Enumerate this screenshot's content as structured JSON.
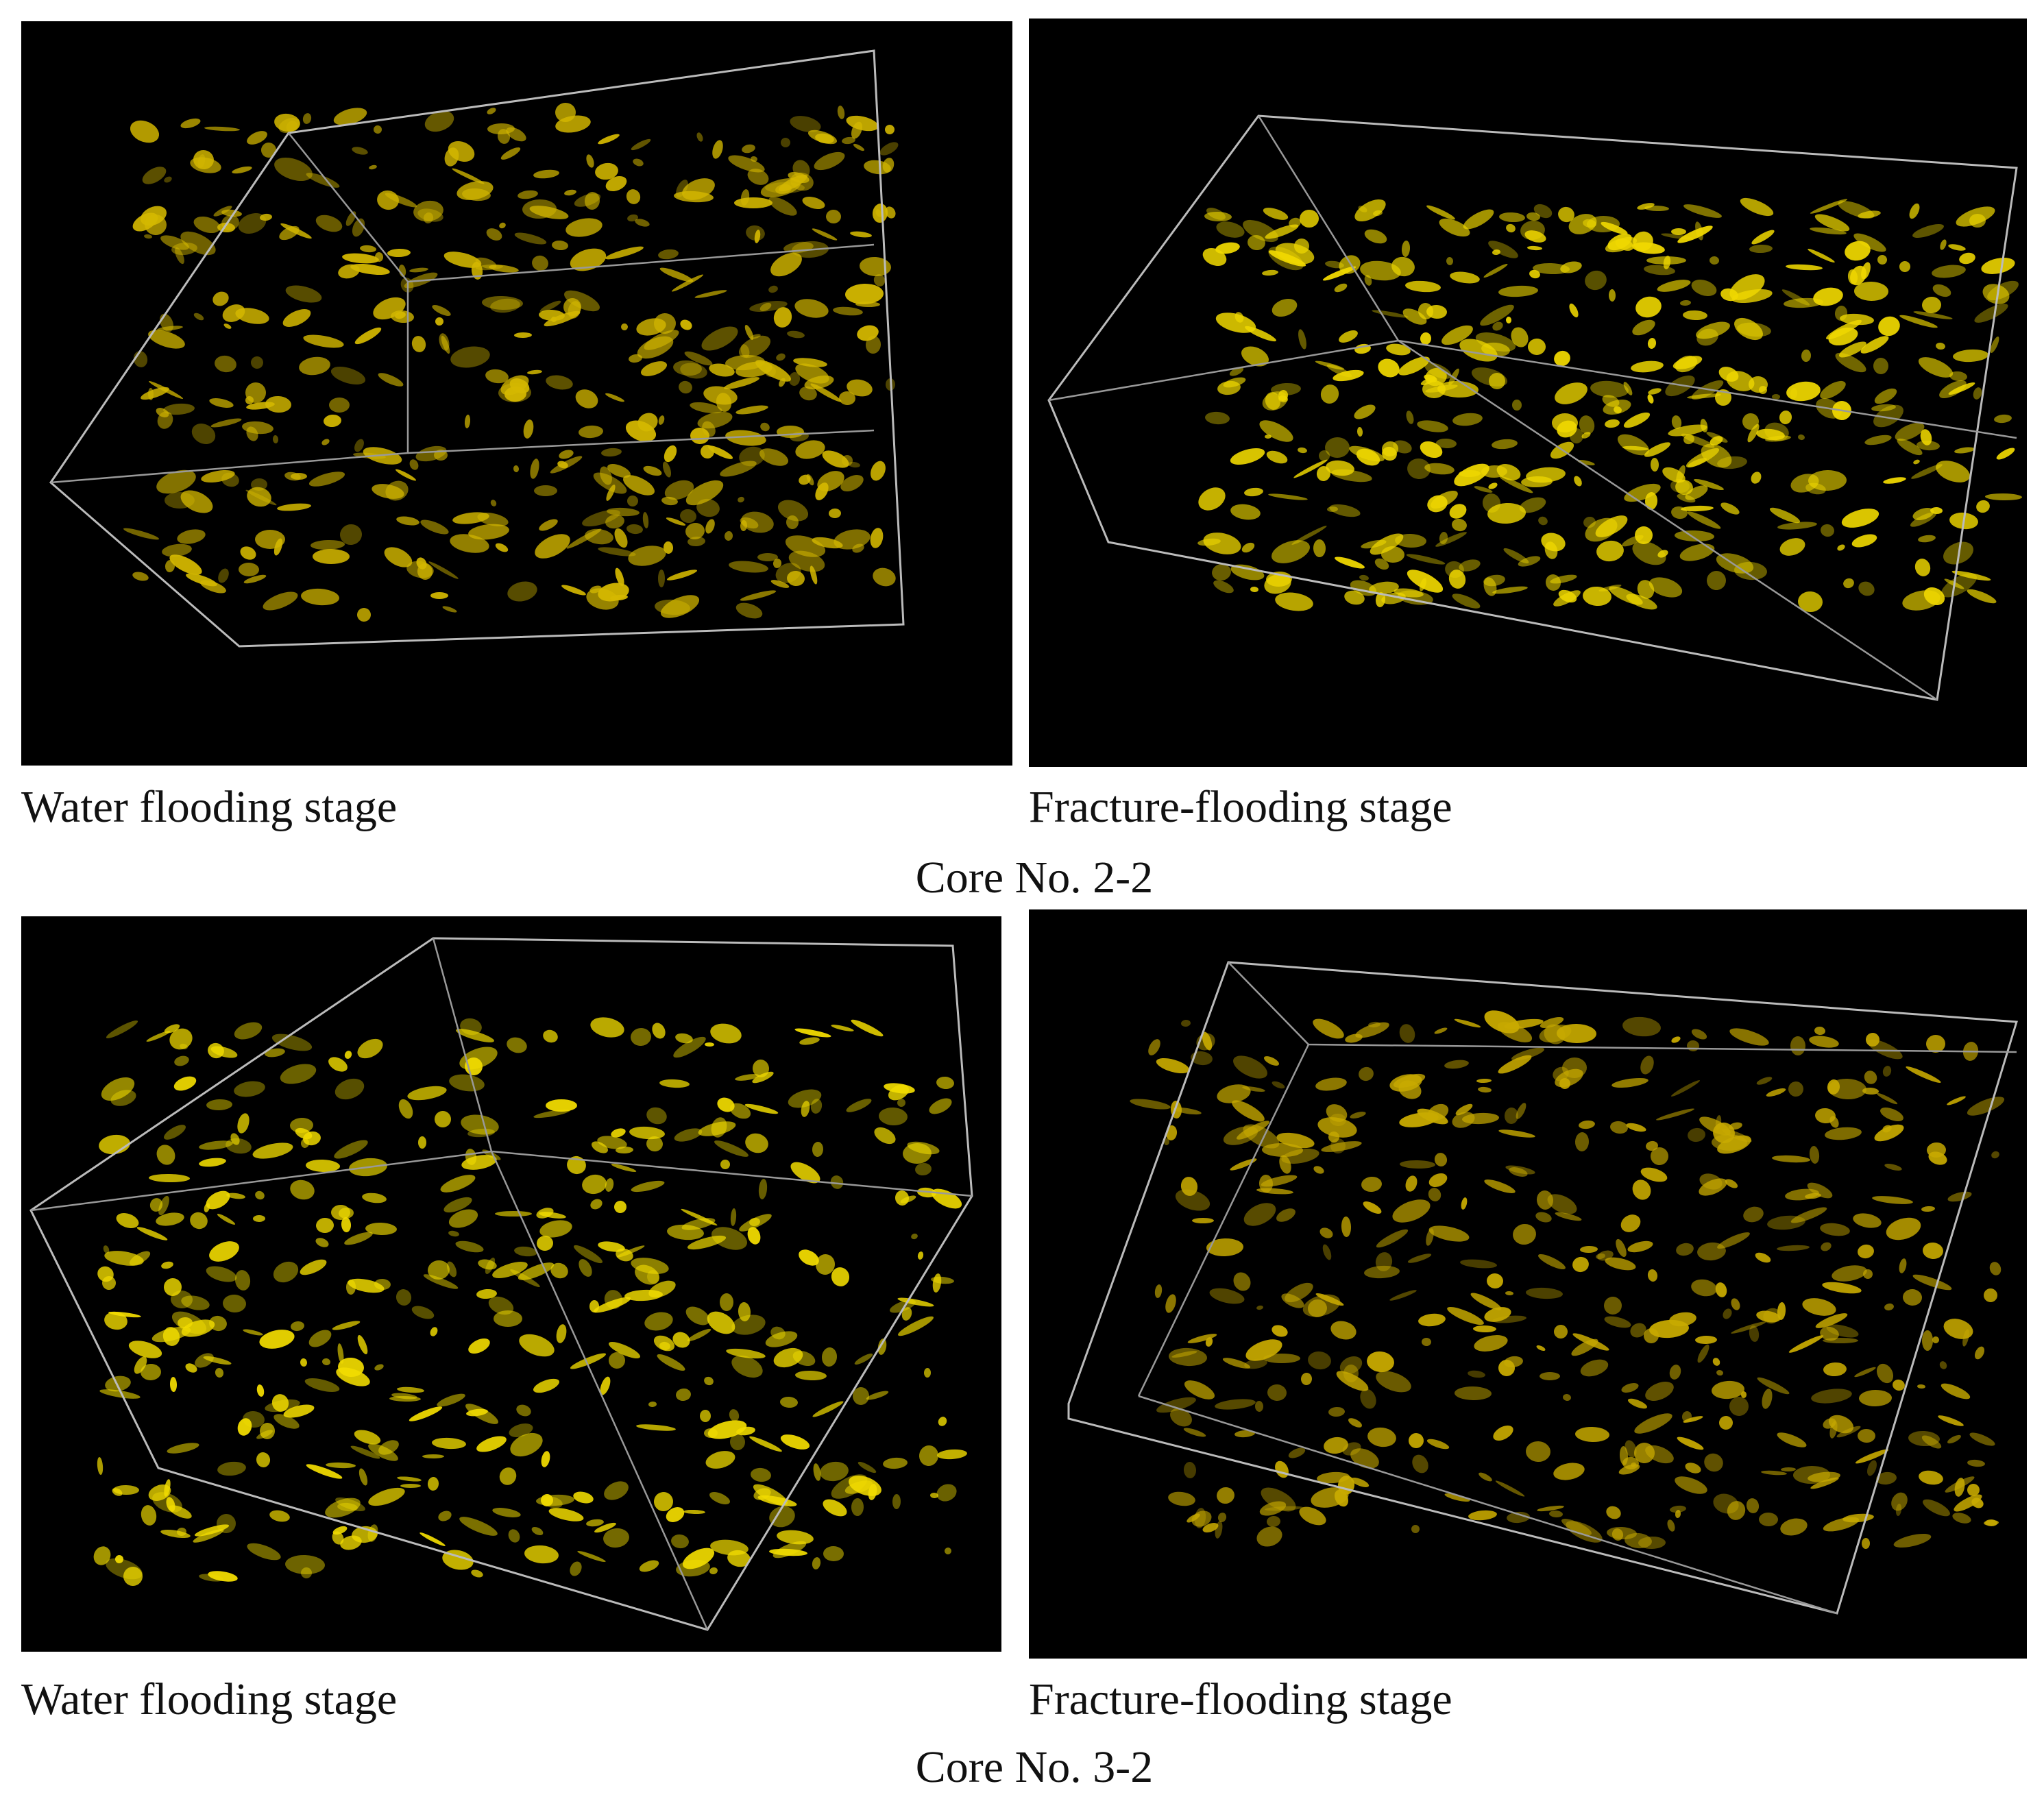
{
  "groups": [
    {
      "label": "Core No. 2-2",
      "panels": [
        {
          "caption": "Water flooding stage"
        },
        {
          "caption": "Fracture-flooding stage"
        }
      ]
    },
    {
      "label": "Core No. 3-2",
      "panels": [
        {
          "caption": "Water flooding stage"
        },
        {
          "caption": "Fracture-flooding stage"
        }
      ]
    }
  ]
}
